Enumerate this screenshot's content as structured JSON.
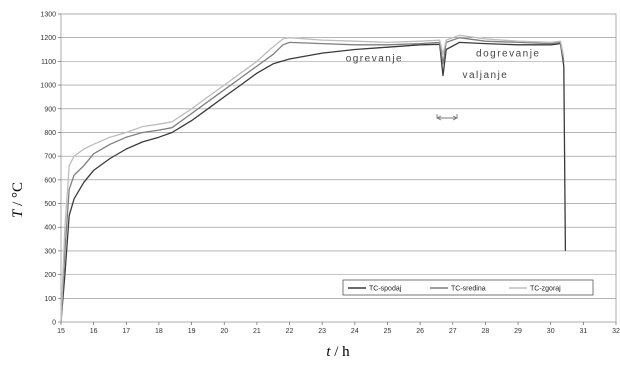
{
  "chart_data": {
    "type": "line",
    "xlabel_var": "t",
    "xlabel_unit": "/ h",
    "ylabel_var": "T",
    "ylabel_unit": "/ °C",
    "xlim": [
      15,
      32
    ],
    "ylim": [
      0,
      1300
    ],
    "x_ticks": [
      15,
      16,
      17,
      18,
      19,
      20,
      21,
      22,
      23,
      24,
      25,
      26,
      27,
      28,
      29,
      30,
      31,
      32
    ],
    "y_ticks": [
      0,
      100,
      200,
      300,
      400,
      500,
      600,
      700,
      800,
      900,
      1000,
      1100,
      1200,
      1300
    ],
    "grid": "horizontal",
    "legend_position": "bottom-right",
    "annotations": [
      {
        "text": "ogrevanje",
        "x": 24.6,
        "y": 1100
      },
      {
        "text": "valjanje",
        "x": 28.0,
        "y": 1030
      },
      {
        "text": "dogrevanje",
        "x": 28.7,
        "y": 1120
      }
    ],
    "series": [
      {
        "name": "TC-spodaj",
        "color": "#3a3a3a",
        "points": [
          [
            15.0,
            0
          ],
          [
            15.12,
            200
          ],
          [
            15.25,
            450
          ],
          [
            15.4,
            520
          ],
          [
            15.7,
            590
          ],
          [
            16.0,
            640
          ],
          [
            16.5,
            690
          ],
          [
            17.0,
            730
          ],
          [
            17.5,
            760
          ],
          [
            18.0,
            780
          ],
          [
            18.4,
            800
          ],
          [
            19.0,
            850
          ],
          [
            19.5,
            900
          ],
          [
            20.0,
            950
          ],
          [
            20.5,
            1000
          ],
          [
            21.0,
            1050
          ],
          [
            21.5,
            1090
          ],
          [
            22.0,
            1110
          ],
          [
            23.0,
            1135
          ],
          [
            24.0,
            1150
          ],
          [
            25.0,
            1160
          ],
          [
            26.0,
            1170
          ],
          [
            26.6,
            1172
          ],
          [
            26.7,
            1040
          ],
          [
            26.8,
            1150
          ],
          [
            27.2,
            1180
          ],
          [
            28.0,
            1175
          ],
          [
            29.0,
            1170
          ],
          [
            30.0,
            1170
          ],
          [
            30.3,
            1175
          ],
          [
            30.4,
            1080
          ],
          [
            30.45,
            300
          ]
        ]
      },
      {
        "name": "TC-sredina",
        "color": "#7f7f7f",
        "points": [
          [
            15.0,
            0
          ],
          [
            15.12,
            300
          ],
          [
            15.25,
            560
          ],
          [
            15.4,
            620
          ],
          [
            15.7,
            660
          ],
          [
            16.0,
            710
          ],
          [
            16.5,
            750
          ],
          [
            17.0,
            780
          ],
          [
            17.5,
            800
          ],
          [
            18.0,
            810
          ],
          [
            18.4,
            820
          ],
          [
            19.0,
            880
          ],
          [
            19.5,
            930
          ],
          [
            20.0,
            980
          ],
          [
            20.5,
            1030
          ],
          [
            21.0,
            1080
          ],
          [
            21.5,
            1130
          ],
          [
            21.8,
            1170
          ],
          [
            22.0,
            1180
          ],
          [
            23.0,
            1175
          ],
          [
            24.0,
            1170
          ],
          [
            25.0,
            1170
          ],
          [
            26.0,
            1175
          ],
          [
            26.6,
            1180
          ],
          [
            26.7,
            1090
          ],
          [
            26.8,
            1180
          ],
          [
            27.2,
            1200
          ],
          [
            28.0,
            1185
          ],
          [
            29.0,
            1180
          ],
          [
            30.0,
            1175
          ],
          [
            30.3,
            1180
          ],
          [
            30.4,
            1100
          ]
        ]
      },
      {
        "name": "TC-zgoraj",
        "color": "#bdbdbd",
        "points": [
          [
            15.0,
            0
          ],
          [
            15.12,
            400
          ],
          [
            15.25,
            660
          ],
          [
            15.4,
            700
          ],
          [
            15.7,
            730
          ],
          [
            16.0,
            750
          ],
          [
            16.5,
            780
          ],
          [
            17.0,
            800
          ],
          [
            17.5,
            825
          ],
          [
            18.0,
            835
          ],
          [
            18.4,
            845
          ],
          [
            19.0,
            900
          ],
          [
            19.5,
            950
          ],
          [
            20.0,
            1000
          ],
          [
            20.5,
            1050
          ],
          [
            21.0,
            1100
          ],
          [
            21.4,
            1150
          ],
          [
            21.8,
            1195
          ],
          [
            22.0,
            1200
          ],
          [
            23.0,
            1190
          ],
          [
            24.0,
            1185
          ],
          [
            25.0,
            1180
          ],
          [
            26.0,
            1185
          ],
          [
            26.6,
            1190
          ],
          [
            26.7,
            1130
          ],
          [
            26.8,
            1190
          ],
          [
            27.2,
            1210
          ],
          [
            28.0,
            1195
          ],
          [
            29.0,
            1185
          ],
          [
            30.0,
            1180
          ],
          [
            30.3,
            1185
          ],
          [
            30.4,
            1120
          ]
        ]
      }
    ]
  }
}
